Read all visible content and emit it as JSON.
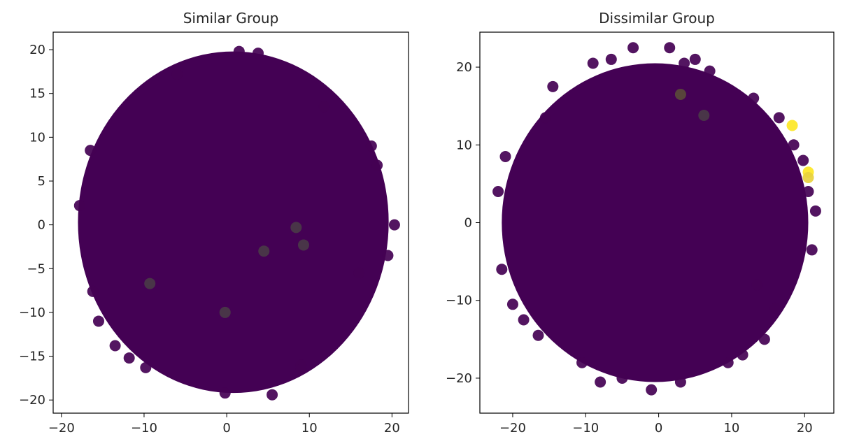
{
  "chart_data": [
    {
      "type": "scatter",
      "title": "Similar Group",
      "xlabel": "",
      "ylabel": "",
      "xlim": [
        -21,
        22
      ],
      "ylim": [
        -21.5,
        22
      ],
      "xticks": [
        -20,
        -10,
        0,
        10,
        20
      ],
      "xtick_labels": [
        "−20",
        "−10",
        "0",
        "10",
        "20"
      ],
      "yticks": [
        -20,
        -15,
        -10,
        -5,
        0,
        5,
        10,
        15,
        20
      ],
      "ytick_labels": [
        "−20",
        "−15",
        "−10",
        "−5",
        "0",
        "5",
        "10",
        "15",
        "20"
      ],
      "grid": false,
      "legend": "none",
      "cloud": {
        "cx": 0.8,
        "cy": 0.3,
        "rx": 18.8,
        "ry": 19.5,
        "color": "#440154"
      },
      "points": [
        {
          "x": -16.5,
          "y": 8.5,
          "color": "#440154"
        },
        {
          "x": -17.8,
          "y": 2.2,
          "color": "#440154"
        },
        {
          "x": -16.2,
          "y": -7.6,
          "color": "#440154"
        },
        {
          "x": -15.5,
          "y": -11.0,
          "color": "#440154"
        },
        {
          "x": -13.5,
          "y": -13.8,
          "color": "#440154"
        },
        {
          "x": -11.8,
          "y": -15.2,
          "color": "#440154"
        },
        {
          "x": -9.8,
          "y": -16.3,
          "color": "#440154"
        },
        {
          "x": 1.5,
          "y": 19.8,
          "color": "#440154"
        },
        {
          "x": 3.8,
          "y": 19.6,
          "color": "#440154"
        },
        {
          "x": -6.0,
          "y": 17.2,
          "color": "#440154"
        },
        {
          "x": 11.8,
          "y": 13.5,
          "color": "#440154"
        },
        {
          "x": 17.5,
          "y": 9.0,
          "color": "#440154"
        },
        {
          "x": 18.2,
          "y": 6.8,
          "color": "#440154"
        },
        {
          "x": 20.3,
          "y": 0.0,
          "color": "#440154"
        },
        {
          "x": 19.5,
          "y": -3.5,
          "color": "#440154"
        },
        {
          "x": 16.0,
          "y": -5.5,
          "color": "#440154"
        },
        {
          "x": 9.0,
          "y": -16.0,
          "color": "#440154"
        },
        {
          "x": 9.0,
          "y": -16.5,
          "color": "#440154"
        },
        {
          "x": 5.5,
          "y": -19.4,
          "color": "#440154"
        },
        {
          "x": -0.2,
          "y": -19.2,
          "color": "#440154"
        },
        {
          "x": -9.3,
          "y": -6.7,
          "color": "#4a3a48"
        },
        {
          "x": -0.2,
          "y": -10.0,
          "color": "#4a3a48"
        },
        {
          "x": 9.3,
          "y": -2.3,
          "color": "#4a3a48"
        },
        {
          "x": 8.4,
          "y": -0.3,
          "color": "#4a3a48"
        },
        {
          "x": 4.5,
          "y": -3.0,
          "color": "#4a3a48"
        }
      ]
    },
    {
      "type": "scatter",
      "title": "Dissimilar Group",
      "xlabel": "",
      "ylabel": "",
      "xlim": [
        -24.5,
        24
      ],
      "ylim": [
        -24.5,
        24.5
      ],
      "xticks": [
        -20,
        -10,
        0,
        10,
        20
      ],
      "xtick_labels": [
        "−20",
        "−10",
        "0",
        "10",
        "20"
      ],
      "yticks": [
        -20,
        -10,
        0,
        10,
        20
      ],
      "ytick_labels": [
        "−20",
        "−10",
        "0",
        "10",
        "20"
      ],
      "grid": false,
      "legend": "none",
      "cloud": {
        "cx": -0.5,
        "cy": 0.0,
        "rx": 21.0,
        "ry": 20.5,
        "color": "#440154"
      },
      "points": [
        {
          "x": -21.0,
          "y": 8.5,
          "color": "#440154"
        },
        {
          "x": -22.0,
          "y": 4.0,
          "color": "#440154"
        },
        {
          "x": -21.5,
          "y": -6.0,
          "color": "#440154"
        },
        {
          "x": -20.0,
          "y": -10.5,
          "color": "#440154"
        },
        {
          "x": -18.5,
          "y": -12.5,
          "color": "#440154"
        },
        {
          "x": -16.5,
          "y": -14.5,
          "color": "#440154"
        },
        {
          "x": -15.5,
          "y": 13.5,
          "color": "#440154"
        },
        {
          "x": -14.5,
          "y": 17.5,
          "color": "#440154"
        },
        {
          "x": -9.0,
          "y": 20.5,
          "color": "#440154"
        },
        {
          "x": -6.5,
          "y": 21.0,
          "color": "#440154"
        },
        {
          "x": -3.5,
          "y": 22.5,
          "color": "#440154"
        },
        {
          "x": 1.5,
          "y": 22.5,
          "color": "#440154"
        },
        {
          "x": 3.5,
          "y": 20.5,
          "color": "#440154"
        },
        {
          "x": 5.0,
          "y": 21.0,
          "color": "#440154"
        },
        {
          "x": 7.0,
          "y": 19.5,
          "color": "#440154"
        },
        {
          "x": 13.0,
          "y": 16.0,
          "color": "#440154"
        },
        {
          "x": 16.5,
          "y": 13.5,
          "color": "#440154"
        },
        {
          "x": 18.5,
          "y": 10.0,
          "color": "#440154"
        },
        {
          "x": 19.8,
          "y": 8.0,
          "color": "#440154"
        },
        {
          "x": 20.5,
          "y": 4.0,
          "color": "#440154"
        },
        {
          "x": 21.5,
          "y": 1.5,
          "color": "#440154"
        },
        {
          "x": 21.0,
          "y": -3.5,
          "color": "#440154"
        },
        {
          "x": 13.5,
          "y": -8.0,
          "color": "#440154"
        },
        {
          "x": 16.0,
          "y": -11.0,
          "color": "#440154"
        },
        {
          "x": 14.5,
          "y": -15.0,
          "color": "#440154"
        },
        {
          "x": 11.5,
          "y": -17.0,
          "color": "#440154"
        },
        {
          "x": 9.5,
          "y": -18.0,
          "color": "#440154"
        },
        {
          "x": 3.0,
          "y": -20.5,
          "color": "#440154"
        },
        {
          "x": -1.0,
          "y": -21.5,
          "color": "#440154"
        },
        {
          "x": -5.0,
          "y": -20.0,
          "color": "#440154"
        },
        {
          "x": -8.0,
          "y": -20.5,
          "color": "#440154"
        },
        {
          "x": -10.5,
          "y": -18.0,
          "color": "#440154"
        },
        {
          "x": 18.3,
          "y": 12.5,
          "color": "#fde725"
        },
        {
          "x": 20.5,
          "y": 6.5,
          "color": "#fde725"
        },
        {
          "x": 20.5,
          "y": 5.8,
          "color": "#e8d13e"
        },
        {
          "x": 3.0,
          "y": 16.5,
          "color": "#5a4a3a"
        },
        {
          "x": 6.2,
          "y": 13.8,
          "color": "#4a3a48"
        }
      ]
    }
  ]
}
